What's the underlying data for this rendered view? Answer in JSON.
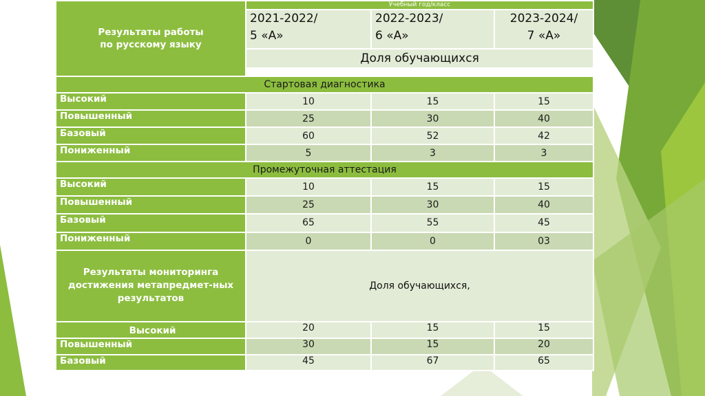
{
  "colors": {
    "green": "#8cbd3f",
    "light": "#e2ebd5",
    "mid": "#c9d9b3"
  },
  "header": {
    "title_line1": "Результаты работы",
    "title_line2": "по русскому языку",
    "caption": "Учебный год/класс",
    "year1_l1": "2021-2022/",
    "year1_l2": "5 «А»",
    "year2_l1": "2022-2023/",
    "year2_l2": "6 «А»",
    "year3_l1": "2023-2024/",
    "year3_l2": "7 «А»",
    "share": "Доля обучающихся"
  },
  "sections": [
    {
      "title": "Стартовая диагностика",
      "rows": [
        {
          "label": "Высокий",
          "v": [
            "10",
            "15",
            "15"
          ]
        },
        {
          "label": "Повышенный",
          "v": [
            "25",
            "30",
            "40"
          ]
        },
        {
          "label": "Базовый",
          "v": [
            "60",
            "52",
            "42"
          ]
        },
        {
          "label": "Пониженный",
          "v": [
            "5",
            "3",
            "3"
          ]
        }
      ]
    },
    {
      "title": "Промежуточная аттестация",
      "rows": [
        {
          "label": "Высокий",
          "v": [
            "10",
            "15",
            "15"
          ]
        },
        {
          "label": "Повышенный",
          "v": [
            "25",
            "30",
            "40"
          ]
        },
        {
          "label": "Базовый",
          "v": [
            "65",
            "55",
            "45"
          ]
        },
        {
          "label": "Пониженный",
          "v": [
            "0",
            "0",
            "03"
          ]
        }
      ]
    }
  ],
  "monitoring": {
    "line1": "Результаты мониторинга",
    "line2": "достижения метапредмет-ных",
    "line3": "результатов",
    "share": "Доля обучающихся,",
    "rows": [
      {
        "label": "Высокий",
        "v": [
          "20",
          "15",
          "15"
        ]
      },
      {
        "label": "Повышенный",
        "v": [
          "30",
          "15",
          "20"
        ]
      },
      {
        "label": "Базовый",
        "v": [
          "45",
          "67",
          "65"
        ]
      }
    ]
  }
}
